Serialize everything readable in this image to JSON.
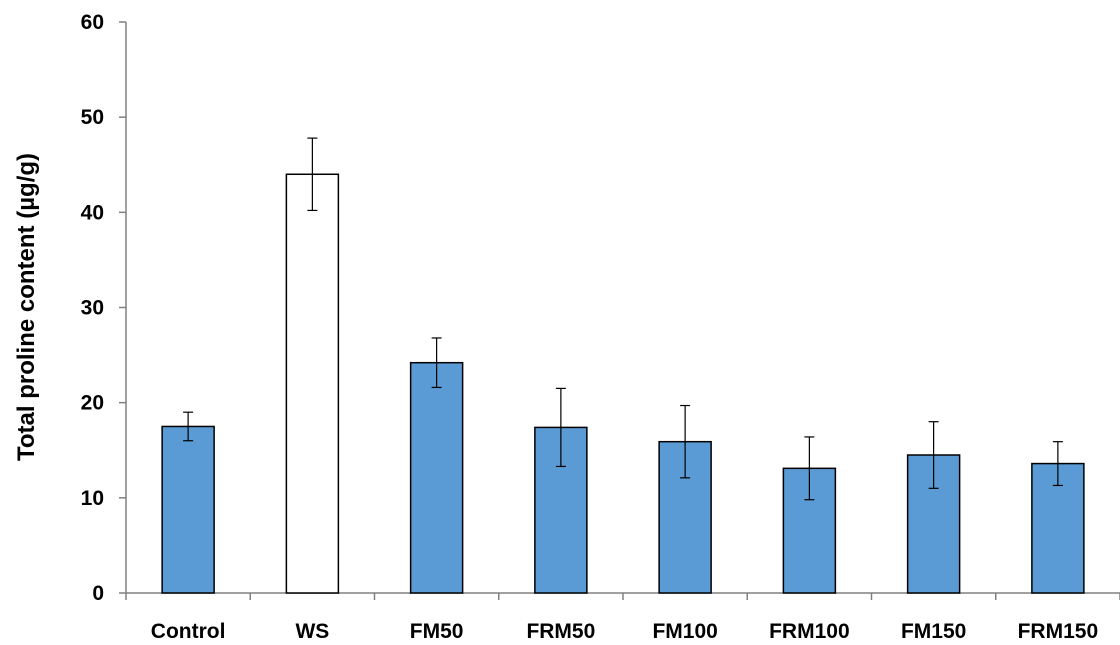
{
  "chart_data": {
    "type": "bar",
    "title": "",
    "xlabel": "",
    "ylabel": "Total proline content (µg/g)",
    "ylim": [
      0,
      60
    ],
    "yticks": [
      0,
      10,
      20,
      30,
      40,
      50,
      60
    ],
    "grid": false,
    "legend": "none",
    "categories": [
      "Control",
      "WS",
      "FM50",
      "FRM50",
      "FM100",
      "FRM100",
      "FM150",
      "FRM150"
    ],
    "values": [
      17.5,
      44.0,
      24.2,
      17.4,
      15.9,
      13.1,
      14.5,
      13.6
    ],
    "error": [
      1.5,
      3.8,
      2.6,
      4.1,
      3.8,
      3.3,
      3.5,
      2.3
    ],
    "bar_colors": [
      "#5b9bd5",
      "#ffffff",
      "#5b9bd5",
      "#5b9bd5",
      "#5b9bd5",
      "#5b9bd5",
      "#5b9bd5",
      "#5b9bd5"
    ],
    "bar_edge_color": "#000000"
  }
}
